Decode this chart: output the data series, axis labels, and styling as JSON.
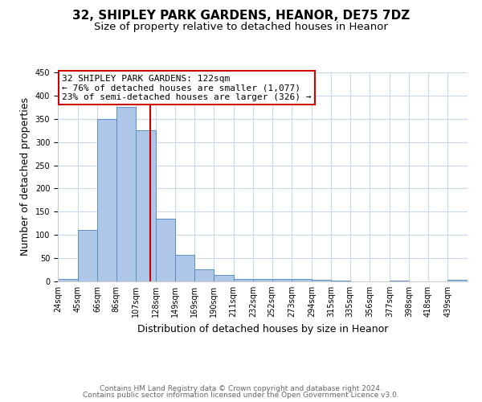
{
  "title": "32, SHIPLEY PARK GARDENS, HEANOR, DE75 7DZ",
  "subtitle": "Size of property relative to detached houses in Heanor",
  "xlabel": "Distribution of detached houses by size in Heanor",
  "ylabel": "Number of detached properties",
  "bin_labels": [
    "24sqm",
    "45sqm",
    "66sqm",
    "86sqm",
    "107sqm",
    "128sqm",
    "149sqm",
    "169sqm",
    "190sqm",
    "211sqm",
    "232sqm",
    "252sqm",
    "273sqm",
    "294sqm",
    "315sqm",
    "335sqm",
    "356sqm",
    "377sqm",
    "398sqm",
    "418sqm",
    "439sqm"
  ],
  "bin_edges": [
    24,
    45,
    66,
    86,
    107,
    128,
    149,
    169,
    190,
    211,
    232,
    252,
    273,
    294,
    315,
    335,
    356,
    377,
    398,
    418,
    439,
    460
  ],
  "bar_values": [
    5,
    110,
    350,
    375,
    325,
    135,
    57,
    26,
    13,
    6,
    5,
    6,
    5,
    3,
    1,
    0,
    0,
    1,
    0,
    0,
    3
  ],
  "bar_color": "#aec6e8",
  "bar_edge_color": "#5a8fc3",
  "vline_x": 122,
  "vline_color": "#cc0000",
  "annotation_text": "32 SHIPLEY PARK GARDENS: 122sqm\n← 76% of detached houses are smaller (1,077)\n23% of semi-detached houses are larger (326) →",
  "annotation_box_edge_color": "#cc0000",
  "ylim": [
    0,
    450
  ],
  "footer_line1": "Contains HM Land Registry data © Crown copyright and database right 2024.",
  "footer_line2": "Contains public sector information licensed under the Open Government Licence v3.0.",
  "background_color": "#ffffff",
  "grid_color": "#c8d8e8",
  "title_fontsize": 11,
  "subtitle_fontsize": 9.5,
  "axis_label_fontsize": 9,
  "tick_fontsize": 7,
  "annotation_fontsize": 8,
  "footer_fontsize": 6.5
}
